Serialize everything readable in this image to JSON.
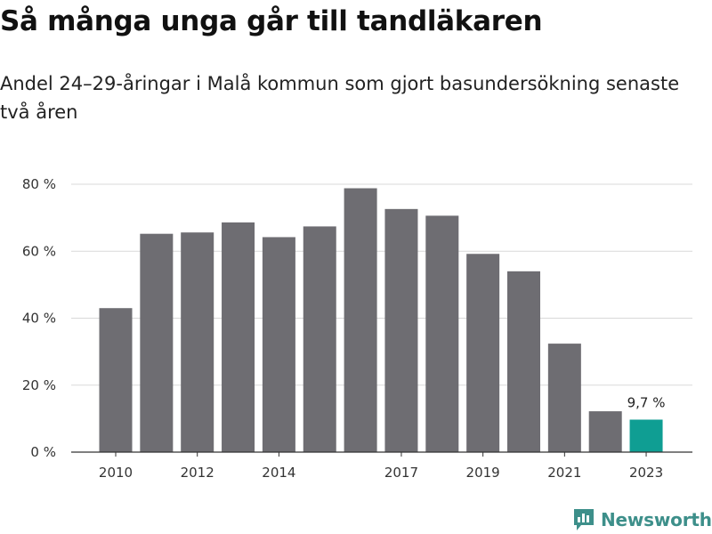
{
  "title": "Så många unga går till tandläkaren",
  "subtitle": "Andel 24–29-åringar i Malå kommun som gjort basundersökning senaste två åren",
  "chart_data": {
    "type": "bar",
    "x": [
      2010,
      2011,
      2012,
      2013,
      2014,
      2015,
      2016,
      2017,
      2018,
      2019,
      2020,
      2021,
      2022,
      2023
    ],
    "values": [
      43,
      65.2,
      65.6,
      68.6,
      64.2,
      67.4,
      78.8,
      72.6,
      70.6,
      59.2,
      54,
      32.4,
      12.2,
      9.7
    ],
    "x_tick_labels": [
      "2010",
      "2012",
      "2014",
      "2017",
      "2019",
      "2021",
      "2023"
    ],
    "y_ticks": [
      0,
      20,
      40,
      60,
      80
    ],
    "y_tick_labels": [
      "0 %",
      "20 %",
      "40 %",
      "60 %",
      "80 %"
    ],
    "ylim": [
      0,
      80
    ],
    "grid": true,
    "highlight_index": 13,
    "highlight_label": "9,7 %",
    "colors": {
      "bar": "#6e6d72",
      "highlight": "#0f9e93",
      "grid": "#d9d9d9",
      "axis": "#333333"
    }
  },
  "logo": {
    "text": "Newsworthy",
    "icon": "newsworthy-logo-icon",
    "color": "#3d8f8a"
  }
}
